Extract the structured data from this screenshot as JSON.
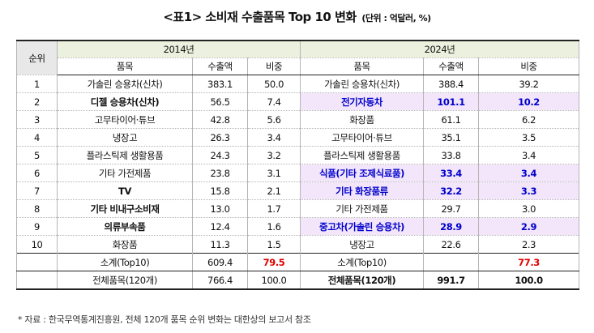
{
  "title": {
    "main": "<표1> 소비재 수출품목 Top 10 변화",
    "unit": "(단위 : 억달러, %)"
  },
  "headers": {
    "rank": "순위",
    "year_2014": "2014년",
    "year_2024": "2024년",
    "item": "품목",
    "export": "수출액",
    "share": "비중"
  },
  "rows": [
    {
      "rank": "1",
      "item14": "가솔린 승용차(신차)",
      "exp14": "383.1",
      "sh14": "50.0",
      "item24": "가솔린 승용차(신차)",
      "exp24": "388.4",
      "sh24": "39.2"
    },
    {
      "rank": "2",
      "item14": "디젤 승용차(신차)",
      "exp14": "56.5",
      "sh14": "7.4",
      "item24": "전기자동차",
      "exp24": "101.1",
      "sh24": "10.2"
    },
    {
      "rank": "3",
      "item14": "고무타이어·튜브",
      "exp14": "42.8",
      "sh14": "5.6",
      "item24": "화장품",
      "exp24": "61.1",
      "sh24": "6.2"
    },
    {
      "rank": "4",
      "item14": "냉장고",
      "exp14": "26.3",
      "sh14": "3.4",
      "item24": "고무타이어·튜브",
      "exp24": "35.1",
      "sh24": "3.5"
    },
    {
      "rank": "5",
      "item14": "플라스틱제 생활용품",
      "exp14": "24.3",
      "sh14": "3.2",
      "item24": "플라스틱제 생활용품",
      "exp24": "33.8",
      "sh24": "3.4"
    },
    {
      "rank": "6",
      "item14": "기타 가전제품",
      "exp14": "23.8",
      "sh14": "3.1",
      "item24": "식품(기타 조제식료품)",
      "exp24": "33.4",
      "sh24": "3.4"
    },
    {
      "rank": "7",
      "item14": "TV",
      "exp14": "15.8",
      "sh14": "2.1",
      "item24": "기타 화장품류",
      "exp24": "32.2",
      "sh24": "3.3"
    },
    {
      "rank": "8",
      "item14": "기타 비내구소비재",
      "exp14": "13.0",
      "sh14": "1.7",
      "item24": "기타 가전제품",
      "exp24": "29.7",
      "sh24": "3.0"
    },
    {
      "rank": "9",
      "item14": "의류부속품",
      "exp14": "12.4",
      "sh14": "1.6",
      "item24": "중고차(가솔린 승용차)",
      "exp24": "28.9",
      "sh24": "2.9"
    },
    {
      "rank": "10",
      "item14": "화장품",
      "exp14": "11.3",
      "sh14": "1.5",
      "item24": "냉장고",
      "exp24": "22.6",
      "sh24": "2.3"
    }
  ],
  "subtotal": {
    "label14": "소계(Top10)",
    "exp14": "609.4",
    "sh14": "79.5",
    "label24": "소계(Top10)",
    "exp24": "",
    "sh24": "77.3"
  },
  "total": {
    "label14": "전체품목(120개)",
    "exp14": "766.4",
    "sh14": "100.0",
    "label24": "전체품목(120개)",
    "exp24": "991.7",
    "sh24": "100.0"
  },
  "note": "* 자료 : 한국무역통계진흥원, 전체 120개 품목 순위 변화는 대한상의 보고서 참조",
  "colors": {
    "highlight_bg": "#f3e6fb",
    "highlight_text": "#0000cc",
    "share_red": "#e00000",
    "header_green": "#ebf1de"
  }
}
